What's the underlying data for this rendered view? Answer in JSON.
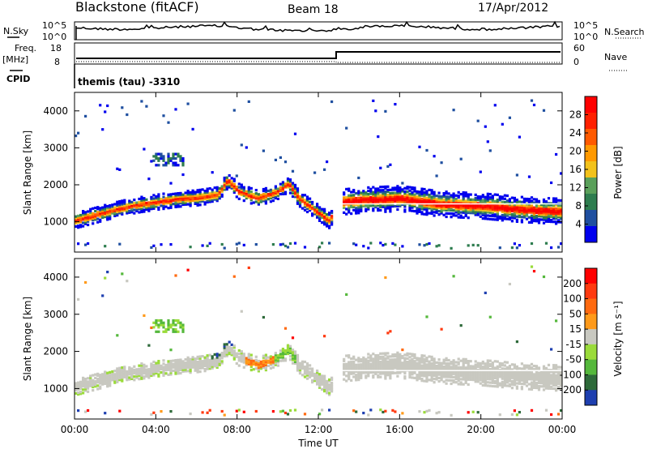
{
  "header": {
    "station": "Blackstone (fitACF)",
    "beam": "Beam 18",
    "date": "17/Apr/2012"
  },
  "aux_panel": {
    "left_label_nsky": "N.Sky",
    "left_ticks_nsky": [
      "10^5",
      "10^0"
    ],
    "right_label_nsearch": "N.Search",
    "right_ticks_nsearch": [
      "10^5",
      "10^0"
    ],
    "freq_label": "Freq.",
    "freq_unit": "[MHz]",
    "freq_ticks": [
      "18",
      "8"
    ],
    "nave_label": "Nave",
    "nave_ticks": [
      "60",
      "0"
    ],
    "cpid_label": "CPID",
    "cpid_value": "themis (tau) -3310"
  },
  "colors": {
    "power": [
      "#0000ee",
      "#1f4fa0",
      "#2e7d4f",
      "#5aa05a",
      "#f3c21b",
      "#ff9900",
      "#ff5a00",
      "#ff2000",
      "#ff0000"
    ],
    "velocity": [
      "#1e3fb0",
      "#2e6a3a",
      "#55b83c",
      "#9adb3a",
      "#c8c8c0",
      "#ff9a1a",
      "#ff6a10",
      "#ff3a10",
      "#ff0000"
    ],
    "gray_scatter": "#c8c8c0"
  },
  "chart_data": [
    {
      "type": "heatmap",
      "name": "Power",
      "ylabel": "Slant Range [km]",
      "yticks": [
        "1000",
        "2000",
        "3000",
        "4000"
      ],
      "ylim": [
        180,
        4500
      ],
      "xlim": [
        0,
        24
      ],
      "colorbar_label": "Power [dB]",
      "colorbar_ticks": [
        "4",
        "8",
        "12",
        "16",
        "20",
        "24",
        "28"
      ],
      "band_ridge_km": [
        [
          0.0,
          1000
        ],
        [
          1.0,
          1150
        ],
        [
          2.0,
          1300
        ],
        [
          3.0,
          1420
        ],
        [
          4.0,
          1500
        ],
        [
          5.0,
          1580
        ],
        [
          6.0,
          1620
        ],
        [
          7.0,
          1700
        ],
        [
          7.5,
          2100
        ],
        [
          8.0,
          1800
        ],
        [
          9.0,
          1600
        ],
        [
          10.0,
          1800
        ],
        [
          10.5,
          2000
        ],
        [
          11.0,
          1600
        ],
        [
          12.0,
          1200
        ],
        [
          12.5,
          1000
        ],
        [
          13.0,
          1500
        ],
        [
          14.0,
          1550
        ],
        [
          16.0,
          1600
        ],
        [
          18.0,
          1450
        ],
        [
          20.0,
          1400
        ],
        [
          22.0,
          1300
        ],
        [
          24.0,
          1250
        ]
      ]
    },
    {
      "type": "heatmap",
      "name": "Velocity",
      "ylabel": "Slant Range [km]",
      "yticks": [
        "1000",
        "2000",
        "3000",
        "4000"
      ],
      "ylim": [
        180,
        4500
      ],
      "xlim": [
        0,
        24
      ],
      "xticks": [
        "00:00",
        "04:00",
        "08:00",
        "12:00",
        "16:00",
        "20:00",
        "00:00"
      ],
      "xlabel": "Time UT",
      "colorbar_label": "Velocity [m s⁻¹]",
      "colorbar_ticks": [
        "200",
        "100",
        "50",
        "15",
        "-15",
        "-50",
        "-100",
        "-200"
      ]
    }
  ]
}
